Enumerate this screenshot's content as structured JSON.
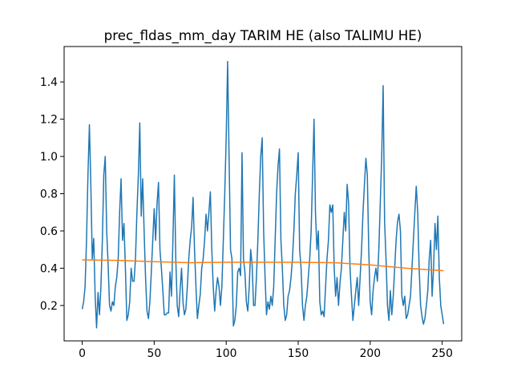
{
  "chart_data": {
    "type": "line",
    "title": "prec_fldas_mm_day TARIM HE (also TALIMU HE)",
    "x": [
      0,
      1,
      2,
      3,
      4,
      5,
      6,
      7,
      8,
      9,
      10,
      11,
      12,
      13,
      14,
      15,
      16,
      17,
      18,
      19,
      20,
      21,
      22,
      23,
      24,
      25,
      26,
      27,
      28,
      29,
      30,
      31,
      32,
      33,
      34,
      35,
      36,
      37,
      38,
      39,
      40,
      41,
      42,
      43,
      44,
      45,
      46,
      47,
      48,
      49,
      50,
      51,
      52,
      53,
      54,
      55,
      56,
      57,
      58,
      59,
      60,
      61,
      62,
      63,
      64,
      65,
      66,
      67,
      68,
      69,
      70,
      71,
      72,
      73,
      74,
      75,
      76,
      77,
      78,
      79,
      80,
      81,
      82,
      83,
      84,
      85,
      86,
      87,
      88,
      89,
      90,
      91,
      92,
      93,
      94,
      95,
      96,
      97,
      98,
      99,
      100,
      101,
      102,
      103,
      104,
      105,
      106,
      107,
      108,
      109,
      110,
      111,
      112,
      113,
      114,
      115,
      116,
      117,
      118,
      119,
      120,
      121,
      122,
      123,
      124,
      125,
      126,
      127,
      128,
      129,
      130,
      131,
      132,
      133,
      134,
      135,
      136,
      137,
      138,
      139,
      140,
      141,
      142,
      143,
      144,
      145,
      146,
      147,
      148,
      149,
      150,
      151,
      152,
      153,
      154,
      155,
      156,
      157,
      158,
      159,
      160,
      161,
      162,
      163,
      164,
      165,
      166,
      167,
      168,
      169,
      170,
      171,
      172,
      173,
      174,
      175,
      176,
      177,
      178,
      179,
      180,
      181,
      182,
      183,
      184,
      185,
      186,
      187,
      188,
      189,
      190,
      191,
      192,
      193,
      194,
      195,
      196,
      197,
      198,
      199,
      200,
      201,
      202,
      203,
      204,
      205,
      206,
      207,
      208,
      209,
      210,
      211,
      212,
      213,
      214,
      215,
      216,
      217,
      218,
      219,
      220,
      221,
      222,
      223,
      224,
      225,
      226,
      227,
      228,
      229,
      230,
      231,
      232,
      233,
      234,
      235,
      236,
      237,
      238,
      239,
      240,
      241,
      242,
      243,
      244,
      245,
      246,
      247,
      248,
      249,
      250,
      251
    ],
    "series": [
      {
        "color": "#1f77b4",
        "values": [
          0.18,
          0.22,
          0.3,
          0.55,
          0.9,
          1.17,
          0.85,
          0.45,
          0.56,
          0.25,
          0.08,
          0.27,
          0.15,
          0.3,
          0.55,
          0.9,
          1.0,
          0.6,
          0.42,
          0.2,
          0.17,
          0.22,
          0.2,
          0.3,
          0.35,
          0.45,
          0.7,
          0.88,
          0.55,
          0.64,
          0.4,
          0.12,
          0.15,
          0.22,
          0.4,
          0.33,
          0.33,
          0.45,
          0.7,
          0.9,
          1.18,
          0.68,
          0.88,
          0.6,
          0.35,
          0.17,
          0.13,
          0.22,
          0.38,
          0.55,
          0.72,
          0.55,
          0.75,
          0.86,
          0.5,
          0.4,
          0.28,
          0.15,
          0.15,
          0.16,
          0.16,
          0.38,
          0.25,
          0.55,
          0.9,
          0.45,
          0.2,
          0.14,
          0.28,
          0.4,
          0.22,
          0.15,
          0.18,
          0.3,
          0.45,
          0.55,
          0.62,
          0.78,
          0.5,
          0.3,
          0.13,
          0.2,
          0.26,
          0.4,
          0.45,
          0.55,
          0.69,
          0.6,
          0.7,
          0.81,
          0.5,
          0.3,
          0.17,
          0.28,
          0.35,
          0.3,
          0.2,
          0.3,
          0.55,
          0.8,
          1.1,
          1.51,
          1.0,
          0.5,
          0.45,
          0.09,
          0.12,
          0.2,
          0.38,
          0.4,
          0.36,
          1.02,
          0.45,
          0.38,
          0.22,
          0.17,
          0.3,
          0.5,
          0.42,
          0.2,
          0.2,
          0.35,
          0.55,
          0.8,
          1.0,
          1.1,
          0.6,
          0.35,
          0.15,
          0.22,
          0.18,
          0.25,
          0.2,
          0.3,
          0.55,
          0.8,
          0.95,
          1.04,
          0.55,
          0.4,
          0.2,
          0.12,
          0.15,
          0.25,
          0.28,
          0.35,
          0.45,
          0.6,
          0.8,
          0.9,
          1.02,
          0.5,
          0.4,
          0.2,
          0.12,
          0.2,
          0.25,
          0.35,
          0.45,
          0.6,
          0.9,
          1.2,
          0.7,
          0.5,
          0.6,
          0.22,
          0.15,
          0.17,
          0.14,
          0.3,
          0.45,
          0.55,
          0.74,
          0.7,
          0.74,
          0.4,
          0.25,
          0.35,
          0.2,
          0.32,
          0.4,
          0.55,
          0.7,
          0.6,
          0.85,
          0.75,
          0.4,
          0.25,
          0.12,
          0.2,
          0.28,
          0.35,
          0.2,
          0.35,
          0.5,
          0.7,
          0.85,
          0.99,
          0.9,
          0.5,
          0.22,
          0.15,
          0.28,
          0.35,
          0.4,
          0.33,
          0.5,
          0.75,
          1.0,
          1.38,
          0.65,
          0.45,
          0.2,
          0.12,
          0.28,
          0.15,
          0.25,
          0.4,
          0.55,
          0.65,
          0.69,
          0.6,
          0.25,
          0.2,
          0.25,
          0.13,
          0.15,
          0.2,
          0.25,
          0.4,
          0.55,
          0.7,
          0.84,
          0.7,
          0.4,
          0.2,
          0.14,
          0.1,
          0.13,
          0.2,
          0.28,
          0.45,
          0.55,
          0.25,
          0.4,
          0.64,
          0.5,
          0.68,
          0.35,
          0.2,
          0.15,
          0.1
        ]
      },
      {
        "color": "#ff7f0e",
        "x": [
          0,
          25,
          50,
          75,
          100,
          125,
          150,
          175,
          200,
          225,
          250,
          251
        ],
        "values": [
          0.445,
          0.442,
          0.435,
          0.43,
          0.432,
          0.432,
          0.432,
          0.43,
          0.418,
          0.4,
          0.387,
          0.386
        ]
      }
    ],
    "xlim": [
      -12.55,
      263.55
    ],
    "ylim": [
      0.01,
      1.59
    ],
    "xticks": [
      0,
      50,
      100,
      150,
      200,
      250
    ],
    "yticks": [
      0.2,
      0.4,
      0.6,
      0.8,
      {
        "value": 1,
        "label": "1.0"
      },
      1.2,
      1.4
    ]
  }
}
